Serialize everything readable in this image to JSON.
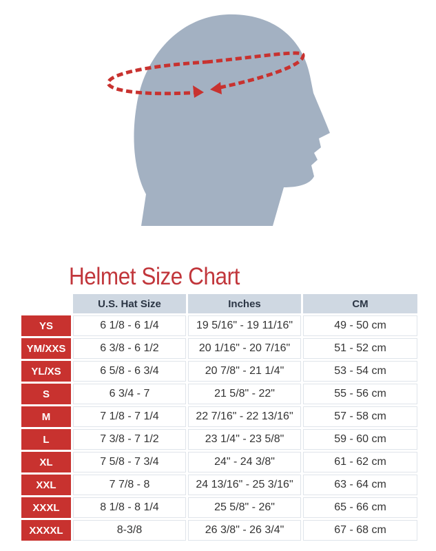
{
  "title": "Helmet Size Chart",
  "colors": {
    "accent": "#c8322f",
    "head": "#a3b1c2",
    "header_bg": "#cfd8e2"
  },
  "illustration": {
    "icon": "head-circumference-measurement-icon"
  },
  "table": {
    "headers": [
      "U.S. Hat Size",
      "Inches",
      "CM"
    ],
    "rows": [
      {
        "size": "YS",
        "hat": "6 1/8 - 6 1/4",
        "inches": "19 5/16\" - 19 11/16\"",
        "cm": "49 - 50 cm"
      },
      {
        "size": "YM/XXS",
        "hat": "6 3/8 - 6 1/2",
        "inches": "20 1/16\" - 20 7/16\"",
        "cm": "51 - 52 cm"
      },
      {
        "size": "YL/XS",
        "hat": "6 5/8 - 6 3/4",
        "inches": "20 7/8\" - 21 1/4\"",
        "cm": "53 - 54 cm"
      },
      {
        "size": "S",
        "hat": "6 3/4 - 7",
        "inches": "21 5/8\" - 22\"",
        "cm": "55 - 56 cm"
      },
      {
        "size": "M",
        "hat": "7 1/8 - 7 1/4",
        "inches": "22 7/16\" - 22 13/16\"",
        "cm": "57 - 58 cm"
      },
      {
        "size": "L",
        "hat": "7 3/8 - 7 1/2",
        "inches": "23 1/4\" - 23 5/8\"",
        "cm": "59 - 60 cm"
      },
      {
        "size": "XL",
        "hat": "7 5/8 - 7 3/4",
        "inches": "24\" - 24 3/8\"",
        "cm": "61 - 62 cm"
      },
      {
        "size": "XXL",
        "hat": "7 7/8 - 8",
        "inches": "24 13/16\" - 25 3/16\"",
        "cm": "63 - 64 cm"
      },
      {
        "size": "XXXL",
        "hat": "8 1/8 - 8 1/4",
        "inches": "25 5/8\" - 26\"",
        "cm": "65 - 66 cm"
      },
      {
        "size": "XXXXL",
        "hat": "8-3/8",
        "inches": "26 3/8\" - 26 3/4\"",
        "cm": "67 - 68 cm"
      }
    ]
  }
}
